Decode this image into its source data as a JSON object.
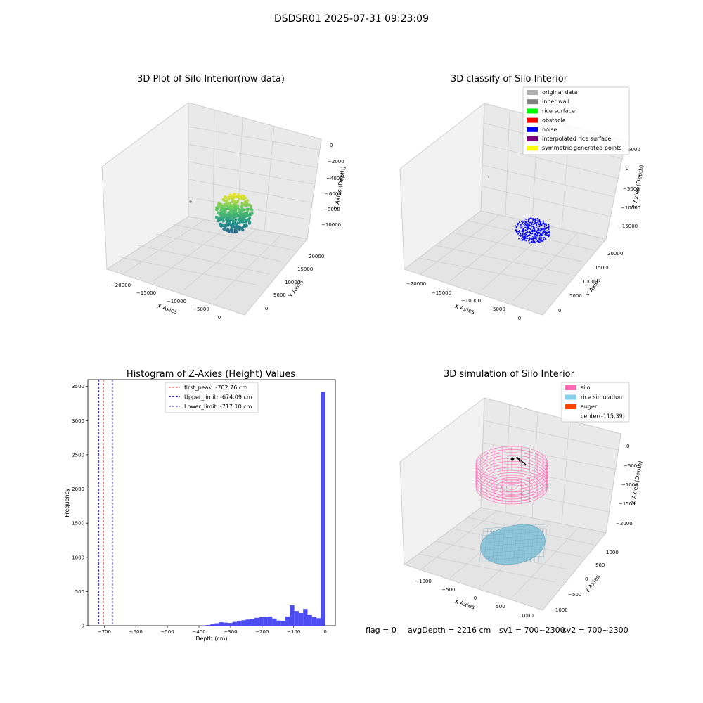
{
  "figure": {
    "suptitle": "DSDSR01 2025-07-31 09:23:09"
  },
  "colors": {
    "pane": "#f2f2f2",
    "pane_dark": "#e6e6e6",
    "grid": "#d0d0d0",
    "hist_bar": "#4c4cf2",
    "first_peak": "#ff0000",
    "limits": "#0000cc",
    "noise": "#0000ff",
    "silo": "#ff69b4",
    "rice": "#6fb7cf"
  },
  "chart_data": [
    {
      "id": "raw",
      "type": "scatter3d",
      "title": "3D Plot of Silo Interior(row data)",
      "xlabel": "X Axies",
      "ylabel": "Y Axies",
      "zlabel": "Z Axies (Depth)",
      "xticks": [
        "−20000",
        "−15000",
        "−10000",
        "−5000",
        "0"
      ],
      "yticks": [
        "0",
        "5000",
        "10000",
        "15000",
        "20000"
      ],
      "zticks": [
        "−10000",
        "−8000",
        "−6000",
        "−4000",
        "−2000",
        "0"
      ],
      "colormap": "viridis"
    },
    {
      "id": "classify",
      "type": "scatter3d",
      "title": "3D classify of Silo Interior",
      "xlabel": "X Axies",
      "ylabel": "Y Axies",
      "zlabel": "Z Axies (Depth)",
      "xticks": [
        "−20000",
        "−15000",
        "−10000",
        "−5000",
        "0"
      ],
      "yticks": [
        "0",
        "5000",
        "10000",
        "15000",
        "20000"
      ],
      "zticks": [
        "−15000",
        "−10000",
        "−5000",
        "0",
        "5000",
        "10000",
        "15000"
      ],
      "legend_position": "top-right",
      "legend": [
        {
          "label": "original data",
          "color": "#b0b0b0"
        },
        {
          "label": "inner wall",
          "color": "#808080"
        },
        {
          "label": "rice surface",
          "color": "#00ff00"
        },
        {
          "label": "obstacle",
          "color": "#ff0000"
        },
        {
          "label": "noise",
          "color": "#0000ff"
        },
        {
          "label": "interpolated rice surface",
          "color": "#800080"
        },
        {
          "label": "symmetric generated points",
          "color": "#ffff00"
        }
      ]
    },
    {
      "id": "hist",
      "type": "bar",
      "title": "Histogram of Z-Axies (Height) Values",
      "xlabel": "Depth (cm)",
      "ylabel": "Frequency",
      "xlim": [
        -752,
        32
      ],
      "ylim": [
        0,
        3600
      ],
      "xticks": [
        -700,
        -600,
        -500,
        -400,
        -300,
        -200,
        -100,
        0
      ],
      "xtick_labels": [
        "−700",
        "−600",
        "−500",
        "−400",
        "−300",
        "−200",
        "−100",
        "0"
      ],
      "yticks": [
        0,
        500,
        1000,
        1500,
        2000,
        2500,
        3000,
        3500
      ],
      "bin_width": 14,
      "bins": [
        {
          "x": -392,
          "y": 5
        },
        {
          "x": -378,
          "y": 10
        },
        {
          "x": -364,
          "y": 20
        },
        {
          "x": -350,
          "y": 35
        },
        {
          "x": -336,
          "y": 50
        },
        {
          "x": -322,
          "y": 45
        },
        {
          "x": -308,
          "y": 40
        },
        {
          "x": -294,
          "y": 55
        },
        {
          "x": -280,
          "y": 70
        },
        {
          "x": -266,
          "y": 80
        },
        {
          "x": -252,
          "y": 90
        },
        {
          "x": -238,
          "y": 100
        },
        {
          "x": -224,
          "y": 115
        },
        {
          "x": -210,
          "y": 125
        },
        {
          "x": -196,
          "y": 130
        },
        {
          "x": -182,
          "y": 135
        },
        {
          "x": -168,
          "y": 105
        },
        {
          "x": -154,
          "y": 75
        },
        {
          "x": -140,
          "y": 70
        },
        {
          "x": -126,
          "y": 135
        },
        {
          "x": -112,
          "y": 300
        },
        {
          "x": -98,
          "y": 215
        },
        {
          "x": -84,
          "y": 185
        },
        {
          "x": -70,
          "y": 245
        },
        {
          "x": -56,
          "y": 155
        },
        {
          "x": -42,
          "y": 125
        },
        {
          "x": -28,
          "y": 110
        },
        {
          "x": -14,
          "y": 3420
        }
      ],
      "vlines": [
        {
          "label": "first_peak: -702.76 cm",
          "x": -702.76,
          "color": "#ff0000"
        },
        {
          "label": "Upper_limit: -674.09 cm",
          "x": -674.09,
          "color": "#0000cc"
        },
        {
          "label": "Lower_limit: -717.10 cm",
          "x": -717.1,
          "color": "#0000cc"
        }
      ]
    },
    {
      "id": "sim",
      "type": "surface3d",
      "title": "3D simulation of Silo Interior",
      "xlabel": "X Axies",
      "ylabel": "Y Axies",
      "zlabel": "Z Axies (Depth)",
      "xticks": [
        "−1000",
        "−500",
        "0",
        "500",
        "1000"
      ],
      "yticks": [
        "−1000",
        "−500",
        "0",
        "500",
        "1000"
      ],
      "zticks": [
        "−2000",
        "−1500",
        "−1000",
        "−500",
        "0"
      ],
      "legend_position": "top-right",
      "legend": [
        {
          "label": "silo",
          "color": "#ff69b4"
        },
        {
          "label": "rice simulation",
          "color": "#87ceeb"
        },
        {
          "label": "auger",
          "color": "#ff4500"
        },
        {
          "label": "center(-115,39)",
          "color": ""
        }
      ]
    }
  ],
  "footer": {
    "flag": "flag = 0",
    "avg": "avgDepth = 2216 cm",
    "sv1": "sv1 = 700~2300",
    "sv2": "sv2 = 700~2300"
  }
}
